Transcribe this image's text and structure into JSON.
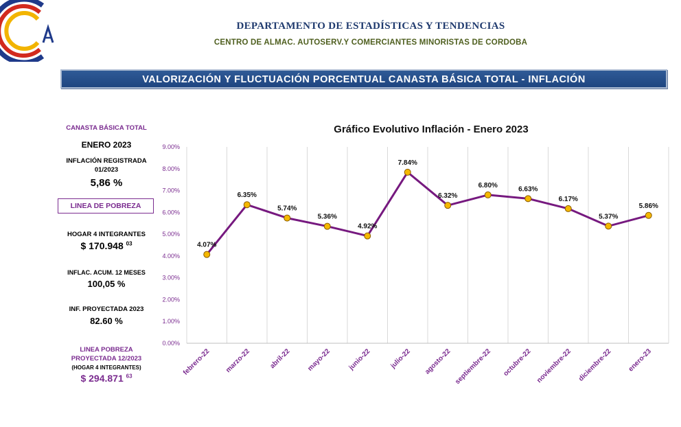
{
  "header": {
    "department": "DEPARTAMENTO DE ESTADÍSTICAS Y TENDENCIAS",
    "center": "CENTRO DE ALMAC. AUTOSERV.Y COMERCIANTES MINORISTAS DE CORDOBA"
  },
  "banner": {
    "title": "VALORIZACIÓN Y FLUCTUACIÓN PORCENTUAL CANASTA BÁSICA TOTAL - INFLACIÓN"
  },
  "sidebar": {
    "canasta_label": "CANASTA BÁSICA TOTAL",
    "month": "ENERO 2023",
    "inflation_label": "INFLACIÓN REGISTRADA",
    "inflation_period": "01/2023",
    "inflation_value": "5,86 %",
    "poverty_line_label": "LINEA DE POBREZA",
    "household_label": "HOGAR 4 INTEGRANTES",
    "household_value": "$ 170.948",
    "household_cents": "03",
    "accum_label": "INFLAC. ACUM. 12 MESES",
    "accum_value": "100,05 %",
    "projected_label": "INF. PROYECTADA 2023",
    "projected_value": "82.60 %",
    "proj_poverty_label_1": "LINEA POBREZA",
    "proj_poverty_label_2": "PROYECTADA 12/2023",
    "proj_poverty_sub": "(HOGAR 4 INTEGRANTES)",
    "proj_poverty_value": "$ 294.871",
    "proj_poverty_cents": "63"
  },
  "chart_data": {
    "type": "line",
    "title": "Gráfico Evolutivo Inflación - Enero 2023",
    "categories": [
      "febrero-22",
      "marzo-22",
      "abril-22",
      "mayo-22",
      "junio-22",
      "julio-22",
      "agosto-22",
      "septiembre-22",
      "octubre-22",
      "noviembre-22",
      "diciembre-22",
      "enero-23"
    ],
    "values": [
      4.07,
      6.35,
      5.74,
      5.36,
      4.92,
      7.84,
      6.32,
      6.8,
      6.63,
      6.17,
      5.37,
      5.86
    ],
    "data_labels": [
      "4.07%",
      "6.35%",
      "5.74%",
      "5.36%",
      "4.92%",
      "7.84%",
      "6.32%",
      "6.80%",
      "6.63%",
      "6.17%",
      "5.37%",
      "5.86%"
    ],
    "yticks": [
      "0.00%",
      "1.00%",
      "2.00%",
      "3.00%",
      "4.00%",
      "5.00%",
      "6.00%",
      "7.00%",
      "8.00%",
      "9.00%"
    ],
    "ylim": [
      0,
      9
    ],
    "grid": "vertical",
    "colors": {
      "line": "#76197f",
      "marker": "#f5b800",
      "marker_edge": "#8a5a00",
      "axis_text": "#7a2b8f"
    }
  }
}
